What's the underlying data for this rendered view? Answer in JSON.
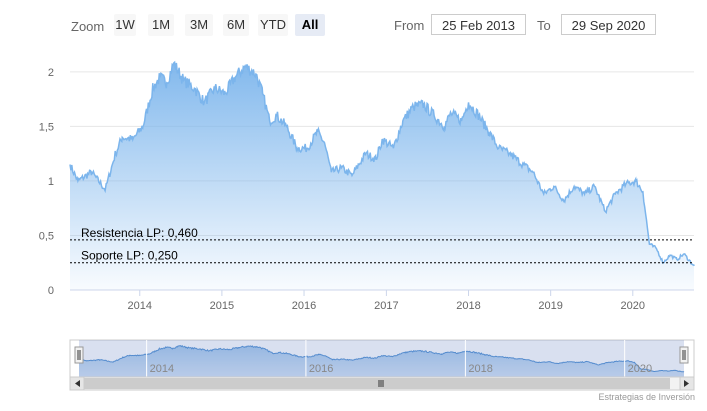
{
  "toolbar": {
    "zoom_label": "Zoom",
    "buttons": [
      "1W",
      "1M",
      "3M",
      "6M",
      "YTD",
      "All"
    ],
    "active": "All",
    "from_label": "From",
    "from_value": "25 Feb 2013",
    "to_label": "To",
    "to_value": "29 Sep 2020"
  },
  "chart_data": {
    "type": "area",
    "x_start": "2013-02-25",
    "x_end": "2020-09-29",
    "ylim": [
      0,
      2.2
    ],
    "yticks": [
      "0",
      "0,5",
      "1",
      "1,5",
      "2"
    ],
    "xticks": [
      "2014",
      "2015",
      "2016",
      "2017",
      "2018",
      "2019",
      "2020"
    ],
    "grid": true,
    "series": [
      {
        "points": [
          [
            "2013-02-25",
            1.15
          ],
          [
            "2013-04-01",
            1.0
          ],
          [
            "2013-06-01",
            1.08
          ],
          [
            "2013-08-01",
            0.92
          ],
          [
            "2013-09-15",
            1.25
          ],
          [
            "2013-10-15",
            1.4
          ],
          [
            "2013-12-01",
            1.38
          ],
          [
            "2014-01-15",
            1.5
          ],
          [
            "2014-03-01",
            1.85
          ],
          [
            "2014-04-01",
            1.95
          ],
          [
            "2014-05-01",
            1.9
          ],
          [
            "2014-06-01",
            2.08
          ],
          [
            "2014-07-15",
            1.92
          ],
          [
            "2014-09-01",
            1.85
          ],
          [
            "2014-10-15",
            1.72
          ],
          [
            "2014-12-01",
            1.85
          ],
          [
            "2015-01-15",
            1.8
          ],
          [
            "2015-03-01",
            1.95
          ],
          [
            "2015-04-15",
            2.05
          ],
          [
            "2015-06-01",
            1.98
          ],
          [
            "2015-07-01",
            1.8
          ],
          [
            "2015-08-01",
            1.55
          ],
          [
            "2015-09-01",
            1.6
          ],
          [
            "2015-10-15",
            1.5
          ],
          [
            "2015-12-01",
            1.3
          ],
          [
            "2016-01-15",
            1.3
          ],
          [
            "2016-03-01",
            1.45
          ],
          [
            "2016-04-01",
            1.35
          ],
          [
            "2016-05-01",
            1.08
          ],
          [
            "2016-06-15",
            1.12
          ],
          [
            "2016-08-01",
            1.05
          ],
          [
            "2016-10-01",
            1.25
          ],
          [
            "2016-11-15",
            1.2
          ],
          [
            "2016-12-15",
            1.38
          ],
          [
            "2017-02-01",
            1.3
          ],
          [
            "2017-03-15",
            1.55
          ],
          [
            "2017-05-01",
            1.68
          ],
          [
            "2017-06-15",
            1.7
          ],
          [
            "2017-08-01",
            1.6
          ],
          [
            "2017-09-15",
            1.5
          ],
          [
            "2017-10-15",
            1.62
          ],
          [
            "2017-12-01",
            1.55
          ],
          [
            "2018-01-01",
            1.72
          ],
          [
            "2018-02-15",
            1.6
          ],
          [
            "2018-04-01",
            1.45
          ],
          [
            "2018-05-15",
            1.3
          ],
          [
            "2018-07-01",
            1.25
          ],
          [
            "2018-09-01",
            1.15
          ],
          [
            "2018-10-15",
            1.08
          ],
          [
            "2018-12-01",
            0.88
          ],
          [
            "2019-01-15",
            0.95
          ],
          [
            "2019-03-01",
            0.82
          ],
          [
            "2019-04-15",
            0.95
          ],
          [
            "2019-06-01",
            0.88
          ],
          [
            "2019-07-15",
            0.95
          ],
          [
            "2019-09-01",
            0.72
          ],
          [
            "2019-10-15",
            0.88
          ],
          [
            "2019-12-01",
            0.97
          ],
          [
            "2020-01-15",
            1.0
          ],
          [
            "2020-02-15",
            0.9
          ],
          [
            "2020-03-15",
            0.42
          ],
          [
            "2020-04-15",
            0.38
          ],
          [
            "2020-05-15",
            0.25
          ],
          [
            "2020-06-15",
            0.32
          ],
          [
            "2020-07-15",
            0.28
          ],
          [
            "2020-08-15",
            0.33
          ],
          [
            "2020-09-29",
            0.22
          ]
        ]
      }
    ],
    "annotations": [
      {
        "label": "Resistencia LP: 0,460",
        "value": 0.46
      },
      {
        "label": "Soporte LP: 0,250",
        "value": 0.25
      }
    ]
  },
  "navigator": {
    "labels": [
      "2014",
      "2016",
      "2018",
      "2020"
    ]
  },
  "credit": "Estrategias de Inversión"
}
